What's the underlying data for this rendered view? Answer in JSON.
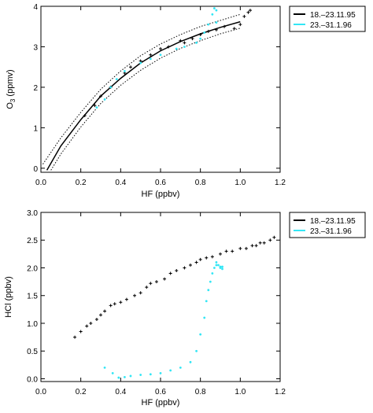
{
  "colors": {
    "series1": "#000000",
    "series2": "#33e6f5",
    "axes": "#000000",
    "background": "#ffffff"
  },
  "chart_data": [
    {
      "type": "scatter",
      "xlabel": "HF (ppbv)",
      "ylabel_main": "O",
      "ylabel_sub": "3",
      "ylabel_unit": " (ppmv)",
      "xlim": [
        0.0,
        1.2
      ],
      "ylim": [
        -0.1,
        4.0
      ],
      "xticks": [
        "0.0",
        "0.2",
        "0.4",
        "0.6",
        "0.8",
        "1.0",
        "1.2"
      ],
      "xtick_values": [
        0.0,
        0.2,
        0.4,
        0.6,
        0.8,
        1.0,
        1.2
      ],
      "yticks": [
        "0",
        "1",
        "2",
        "3",
        "4"
      ],
      "ytick_values": [
        0,
        1,
        2,
        3,
        4
      ],
      "legend": [
        {
          "label": "18.–23.11.95",
          "color": "#000000"
        },
        {
          "label": "23.–31.1.96",
          "color": "#33e6f5"
        }
      ],
      "legend_position": "outside-top-right",
      "fit_curve": {
        "x": [
          0.03,
          0.1,
          0.2,
          0.3,
          0.4,
          0.5,
          0.6,
          0.7,
          0.8,
          0.9,
          1.0
        ],
        "y": [
          -0.05,
          0.55,
          1.2,
          1.78,
          2.22,
          2.6,
          2.9,
          3.13,
          3.32,
          3.48,
          3.62
        ]
      },
      "upper_bound": {
        "x": [
          0.01,
          0.1,
          0.2,
          0.3,
          0.4,
          0.5,
          0.6,
          0.7,
          0.8,
          0.9,
          1.0
        ],
        "y": [
          0.1,
          0.75,
          1.38,
          1.95,
          2.4,
          2.78,
          3.07,
          3.3,
          3.5,
          3.65,
          3.8
        ]
      },
      "lower_bound": {
        "x": [
          0.05,
          0.1,
          0.2,
          0.3,
          0.4,
          0.5,
          0.6,
          0.7,
          0.8,
          0.9,
          1.0
        ],
        "y": [
          -0.05,
          0.35,
          1.02,
          1.6,
          2.05,
          2.42,
          2.72,
          2.96,
          3.15,
          3.32,
          3.46
        ]
      },
      "series": [
        {
          "name": "18.–23.11.95",
          "color": "#000000",
          "marker": "plus",
          "x": [
            0.22,
            0.27,
            0.3,
            0.35,
            0.42,
            0.45,
            0.5,
            0.55,
            0.6,
            0.64,
            0.7,
            0.72,
            0.76,
            0.8,
            0.84,
            0.88,
            0.92,
            0.97,
            1.0,
            1.02,
            1.04,
            1.05
          ],
          "y": [
            1.3,
            1.55,
            1.78,
            2.0,
            2.35,
            2.5,
            2.65,
            2.8,
            2.95,
            3.0,
            3.15,
            3.1,
            3.2,
            3.3,
            3.38,
            3.42,
            3.5,
            3.45,
            3.55,
            3.75,
            3.85,
            3.9
          ]
        },
        {
          "name": "23.–31.1.96",
          "color": "#33e6f5",
          "marker": "dot",
          "x": [
            0.28,
            0.32,
            0.35,
            0.38,
            0.42,
            0.5,
            0.55,
            0.6,
            0.68,
            0.72,
            0.78,
            0.8,
            0.82,
            0.84,
            0.86,
            0.87,
            0.88,
            0.88
          ],
          "y": [
            1.5,
            1.7,
            2.0,
            2.2,
            2.4,
            2.6,
            2.7,
            2.8,
            2.95,
            3.0,
            3.1,
            3.2,
            3.35,
            3.55,
            3.8,
            3.95,
            3.9,
            3.6
          ]
        }
      ]
    },
    {
      "type": "scatter",
      "xlabel": "HF (ppbv)",
      "ylabel_main": "HCl (ppbv)",
      "ylabel_sub": "",
      "ylabel_unit": "",
      "xlim": [
        0.0,
        1.2
      ],
      "ylim": [
        -0.05,
        3.0
      ],
      "xticks": [
        "0.0",
        "0.2",
        "0.4",
        "0.6",
        "0.8",
        "1.0",
        "1.2"
      ],
      "xtick_values": [
        0.0,
        0.2,
        0.4,
        0.6,
        0.8,
        1.0,
        1.2
      ],
      "yticks": [
        "0.0",
        "0.5",
        "1.0",
        "1.5",
        "2.0",
        "2.5",
        "3.0"
      ],
      "ytick_values": [
        0.0,
        0.5,
        1.0,
        1.5,
        2.0,
        2.5,
        3.0
      ],
      "legend": [
        {
          "label": "18.–23.11.95",
          "color": "#000000"
        },
        {
          "label": "23.–31.1.96",
          "color": "#33e6f5"
        }
      ],
      "legend_position": "outside-top-right",
      "series": [
        {
          "name": "18.–23.11.95",
          "color": "#000000",
          "marker": "plus",
          "x": [
            0.17,
            0.2,
            0.23,
            0.25,
            0.28,
            0.3,
            0.32,
            0.35,
            0.37,
            0.4,
            0.43,
            0.47,
            0.5,
            0.53,
            0.55,
            0.58,
            0.62,
            0.65,
            0.68,
            0.72,
            0.75,
            0.78,
            0.8,
            0.83,
            0.86,
            0.9,
            0.93,
            0.96,
            1.0,
            1.03,
            1.06,
            1.08,
            1.1,
            1.12,
            1.15,
            1.17
          ],
          "y": [
            0.75,
            0.85,
            0.95,
            1.0,
            1.07,
            1.15,
            1.22,
            1.32,
            1.35,
            1.38,
            1.43,
            1.5,
            1.55,
            1.65,
            1.72,
            1.75,
            1.8,
            1.9,
            1.95,
            2.0,
            2.05,
            2.1,
            2.15,
            2.18,
            2.2,
            2.25,
            2.3,
            2.3,
            2.35,
            2.35,
            2.4,
            2.4,
            2.45,
            2.45,
            2.5,
            2.55
          ]
        },
        {
          "name": "23.–31.1.96",
          "color": "#33e6f5",
          "marker": "dot",
          "x": [
            0.32,
            0.36,
            0.39,
            0.42,
            0.45,
            0.5,
            0.55,
            0.6,
            0.65,
            0.7,
            0.75,
            0.78,
            0.8,
            0.82,
            0.83,
            0.84,
            0.85,
            0.86,
            0.87,
            0.88,
            0.88,
            0.89,
            0.9,
            0.9,
            0.91,
            0.91
          ],
          "y": [
            0.2,
            0.1,
            0.02,
            0.03,
            0.05,
            0.07,
            0.08,
            0.1,
            0.15,
            0.2,
            0.3,
            0.5,
            0.8,
            1.1,
            1.4,
            1.6,
            1.75,
            1.9,
            2.0,
            2.05,
            2.1,
            2.05,
            2.02,
            2.0,
            1.98,
            2.02
          ]
        }
      ]
    }
  ]
}
